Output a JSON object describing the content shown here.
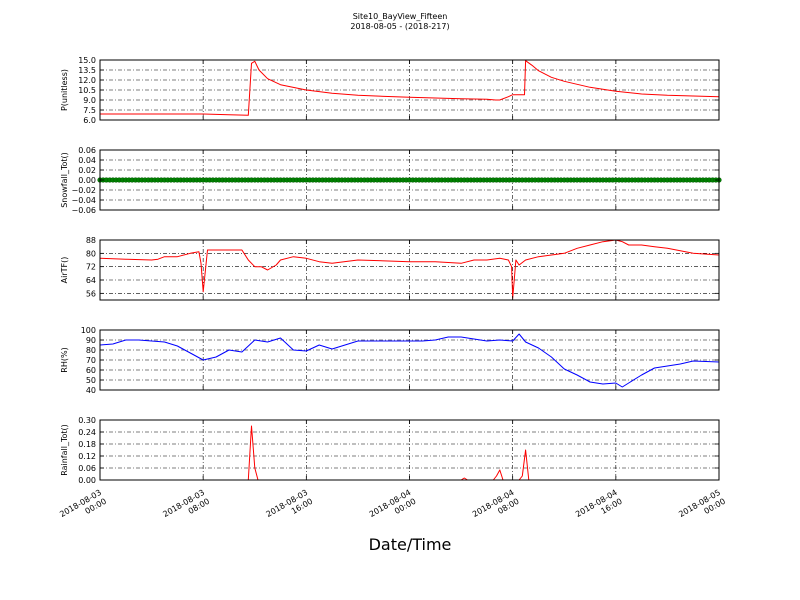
{
  "figure": {
    "title_line1": "Site10_BayView_Fifteen",
    "title_line2": "2018-08-05 - (2018-217)",
    "xlabel": "Date/Time",
    "x_range": [
      "2018-08-03 00:00",
      "2018-08-05 00:00"
    ],
    "x_ticks": [
      {
        "t": "2018-08-03 00:00",
        "label1": "2018-08-03",
        "label2": "00:00"
      },
      {
        "t": "2018-08-03 08:00",
        "label1": "2018-08-03",
        "label2": "08:00"
      },
      {
        "t": "2018-08-03 16:00",
        "label1": "2018-08-03",
        "label2": "16:00"
      },
      {
        "t": "2018-08-04 00:00",
        "label1": "2018-08-04",
        "label2": "00:00"
      },
      {
        "t": "2018-08-04 08:00",
        "label1": "2018-08-04",
        "label2": "08:00"
      },
      {
        "t": "2018-08-04 16:00",
        "label1": "2018-08-04",
        "label2": "16:00"
      },
      {
        "t": "2018-08-05 00:00",
        "label1": "2018-08-05",
        "label2": "00:00"
      }
    ],
    "grid": true
  },
  "chart_data": [
    {
      "type": "line",
      "ylabel": "P(unitless)",
      "ylim": [
        6.0,
        15.0
      ],
      "yticks": [
        "6.0",
        "7.5",
        "9.0",
        "10.5",
        "12.0",
        "13.5",
        "15.0"
      ],
      "color": "#ff0000",
      "x": [
        "2018-08-03 00:00",
        "2018-08-03 03:00",
        "2018-08-03 06:00",
        "2018-08-03 08:00",
        "2018-08-03 10:00",
        "2018-08-03 11:30",
        "2018-08-03 11:45",
        "2018-08-03 12:00",
        "2018-08-03 12:20",
        "2018-08-03 13:00",
        "2018-08-03 14:00",
        "2018-08-03 16:00",
        "2018-08-03 18:00",
        "2018-08-03 20:00",
        "2018-08-04 00:00",
        "2018-08-04 04:00",
        "2018-08-04 06:00",
        "2018-08-04 06:40",
        "2018-08-04 07:00",
        "2018-08-04 07:40",
        "2018-08-04 08:00",
        "2018-08-04 08:30",
        "2018-08-04 08:55",
        "2018-08-04 09:00",
        "2018-08-04 09:30",
        "2018-08-04 10:00",
        "2018-08-04 11:00",
        "2018-08-04 12:00",
        "2018-08-04 14:00",
        "2018-08-04 16:00",
        "2018-08-04 18:00",
        "2018-08-04 20:00",
        "2018-08-05 00:00"
      ],
      "y": [
        6.9,
        6.9,
        6.9,
        6.9,
        6.8,
        6.7,
        14.5,
        14.8,
        13.5,
        12.2,
        11.3,
        10.5,
        10.0,
        9.7,
        9.4,
        9.2,
        9.1,
        9.0,
        9.0,
        9.5,
        9.8,
        9.8,
        9.8,
        14.9,
        14.2,
        13.4,
        12.4,
        11.8,
        10.9,
        10.3,
        9.9,
        9.7,
        9.5
      ]
    },
    {
      "type": "scatter",
      "ylabel": "Snowfall_Tot()",
      "ylim": [
        -0.06,
        0.06
      ],
      "yticks": [
        "−0.06",
        "−0.04",
        "−0.02",
        "0.00",
        "0.02",
        "0.04",
        "0.06"
      ],
      "color": "#008000",
      "x_range": [
        "2018-08-03 00:00",
        "2018-08-05 00:00"
      ],
      "value": 0.0
    },
    {
      "type": "line",
      "ylabel": "AirTF()",
      "ylim": [
        52,
        88
      ],
      "yticks": [
        "56",
        "64",
        "72",
        "80",
        "88"
      ],
      "color": "#ff0000",
      "x": [
        "2018-08-03 00:00",
        "2018-08-03 02:00",
        "2018-08-03 04:00",
        "2018-08-03 04:30",
        "2018-08-03 05:00",
        "2018-08-03 06:00",
        "2018-08-03 07:00",
        "2018-08-03 07:40",
        "2018-08-03 07:50",
        "2018-08-03 08:00",
        "2018-08-03 08:20",
        "2018-08-03 09:00",
        "2018-08-03 10:00",
        "2018-08-03 11:00",
        "2018-08-03 11:30",
        "2018-08-03 12:00",
        "2018-08-03 12:30",
        "2018-08-03 13:00",
        "2018-08-03 13:40",
        "2018-08-03 14:00",
        "2018-08-03 15:00",
        "2018-08-03 16:00",
        "2018-08-03 17:00",
        "2018-08-03 18:00",
        "2018-08-03 20:00",
        "2018-08-04 00:00",
        "2018-08-04 02:00",
        "2018-08-04 04:00",
        "2018-08-04 05:00",
        "2018-08-04 06:00",
        "2018-08-04 07:00",
        "2018-08-04 07:40",
        "2018-08-04 07:55",
        "2018-08-04 08:00",
        "2018-08-04 08:15",
        "2018-08-04 08:30",
        "2018-08-04 09:00",
        "2018-08-04 10:00",
        "2018-08-04 11:00",
        "2018-08-04 12:00",
        "2018-08-04 13:00",
        "2018-08-04 14:00",
        "2018-08-04 15:00",
        "2018-08-04 16:00",
        "2018-08-04 16:30",
        "2018-08-04 17:00",
        "2018-08-04 18:00",
        "2018-08-04 19:00",
        "2018-08-04 20:00",
        "2018-08-04 22:00",
        "2018-08-05 00:00"
      ],
      "y": [
        77,
        76.5,
        76,
        76.5,
        78,
        78,
        80,
        81,
        74,
        57,
        82,
        82,
        82,
        82,
        76,
        72,
        72,
        70,
        73,
        76,
        78,
        77,
        75,
        74,
        76,
        75,
        75,
        74,
        76,
        76,
        77,
        76,
        72,
        53,
        76,
        73,
        76,
        78,
        79,
        80,
        83,
        85,
        87,
        88,
        87,
        85,
        85,
        84,
        83,
        80,
        79
      ]
    },
    {
      "type": "line",
      "ylabel": "RH(%)",
      "ylim": [
        40,
        100
      ],
      "yticks": [
        "40",
        "50",
        "60",
        "70",
        "80",
        "90",
        "100"
      ],
      "color": "#0000ff",
      "x": [
        "2018-08-03 00:00",
        "2018-08-03 01:00",
        "2018-08-03 02:00",
        "2018-08-03 03:00",
        "2018-08-03 04:00",
        "2018-08-03 05:00",
        "2018-08-03 06:00",
        "2018-08-03 07:00",
        "2018-08-03 08:00",
        "2018-08-03 09:00",
        "2018-08-03 10:00",
        "2018-08-03 11:00",
        "2018-08-03 12:00",
        "2018-08-03 13:00",
        "2018-08-03 14:00",
        "2018-08-03 15:00",
        "2018-08-03 16:00",
        "2018-08-03 17:00",
        "2018-08-03 18:00",
        "2018-08-03 20:00",
        "2018-08-03 22:00",
        "2018-08-04 00:00",
        "2018-08-04 01:00",
        "2018-08-04 02:00",
        "2018-08-04 03:00",
        "2018-08-04 04:00",
        "2018-08-04 05:00",
        "2018-08-04 06:00",
        "2018-08-04 07:00",
        "2018-08-04 08:00",
        "2018-08-04 08:30",
        "2018-08-04 09:00",
        "2018-08-04 10:00",
        "2018-08-04 11:00",
        "2018-08-04 12:00",
        "2018-08-04 13:00",
        "2018-08-04 14:00",
        "2018-08-04 15:00",
        "2018-08-04 16:00",
        "2018-08-04 16:30",
        "2018-08-04 17:00",
        "2018-08-04 18:00",
        "2018-08-04 19:00",
        "2018-08-04 20:00",
        "2018-08-04 21:00",
        "2018-08-04 22:00",
        "2018-08-05 00:00"
      ],
      "y": [
        85,
        86,
        90,
        90,
        89,
        88,
        84,
        77,
        70,
        73,
        80,
        78,
        90,
        88,
        92,
        80,
        79,
        85,
        81,
        89,
        89,
        89,
        89,
        90,
        93,
        93,
        91,
        89,
        90,
        89,
        96,
        88,
        82,
        73,
        61,
        55,
        48,
        46,
        47,
        43,
        47,
        55,
        62,
        64,
        66,
        69,
        68
      ]
    },
    {
      "type": "line",
      "ylabel": "Rainfall_Tot()",
      "ylim": [
        0.0,
        0.3
      ],
      "yticks": [
        "0.00",
        "0.06",
        "0.12",
        "0.18",
        "0.24",
        "0.30"
      ],
      "color": "#ff0000",
      "x": [
        "2018-08-03 00:00",
        "2018-08-03 11:30",
        "2018-08-03 11:45",
        "2018-08-03 12:00",
        "2018-08-03 12:15",
        "2018-08-03 12:30",
        "2018-08-04 04:00",
        "2018-08-04 04:15",
        "2018-08-04 04:30",
        "2018-08-04 06:30",
        "2018-08-04 06:45",
        "2018-08-04 07:00",
        "2018-08-04 07:15",
        "2018-08-04 08:30",
        "2018-08-04 08:45",
        "2018-08-04 09:00",
        "2018-08-04 09:15",
        "2018-08-05 00:00"
      ],
      "y": [
        0,
        0,
        0.27,
        0.06,
        0,
        0,
        0,
        0.01,
        0,
        0,
        0.02,
        0.05,
        0,
        0,
        0.02,
        0.15,
        0,
        0
      ]
    }
  ]
}
